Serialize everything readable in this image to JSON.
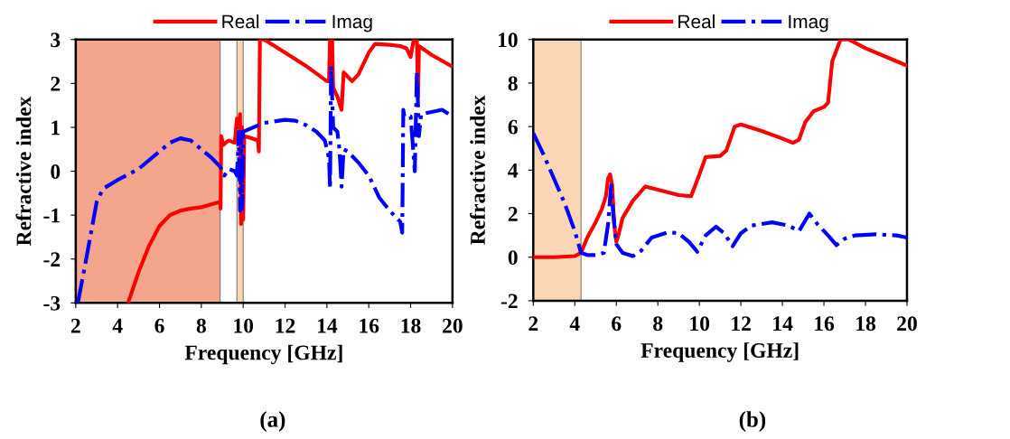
{
  "chart_data": [
    {
      "type": "line",
      "xlabel": "Frequency [GHz]",
      "ylabel": "Refractive index",
      "xlim": [
        2,
        20
      ],
      "ylim": [
        -3,
        3
      ],
      "xticks": [
        2,
        4,
        6,
        8,
        10,
        12,
        14,
        16,
        18,
        20
      ],
      "yticks": [
        -3,
        -2,
        -1,
        0,
        1,
        2,
        3
      ],
      "grid": false,
      "legend": "top",
      "annotations": [
        "(a)"
      ],
      "bands": [
        {
          "axis": "x",
          "from": 2,
          "to": 8.9,
          "color": "#f4a68c"
        },
        {
          "axis": "x",
          "from": 9.7,
          "to": 10.0,
          "color": "#fbd6b4"
        }
      ],
      "series": [
        {
          "name": "Real",
          "color": "#ff0000",
          "line_style": "solid",
          "x": [
            4.5,
            5,
            5.5,
            6,
            6.5,
            7,
            7.5,
            8,
            8.5,
            8.9,
            8.92,
            8.95,
            9.05,
            9.3,
            9.6,
            9.7,
            9.8,
            9.85,
            9.9,
            9.95,
            10.0,
            10.05,
            10.4,
            10.7,
            10.75,
            10.8,
            11,
            12,
            13,
            14,
            14.1,
            14.15,
            14.25,
            14.3,
            14.5,
            14.7,
            14.8,
            15,
            15.2,
            15.5,
            16,
            16.3,
            17,
            17.5,
            17.8,
            18,
            18.15,
            18.3,
            18.35,
            18.4,
            19,
            20
          ],
          "values": [
            -3,
            -2.3,
            -1.7,
            -1.25,
            -1.0,
            -0.9,
            -0.85,
            -0.82,
            -0.75,
            -0.7,
            -0.85,
            0.8,
            0.6,
            0.7,
            0.65,
            1.2,
            1.0,
            1.3,
            -1.2,
            1.0,
            -1.1,
            0.8,
            0.75,
            0.7,
            0.45,
            3.0,
            3.0,
            2.7,
            2.4,
            2.05,
            2.05,
            3.0,
            3.0,
            1.9,
            1.7,
            1.4,
            2.25,
            2.15,
            2.05,
            2.2,
            2.7,
            2.9,
            2.88,
            2.85,
            2.8,
            2.6,
            3.0,
            3.0,
            1.7,
            2.85,
            2.65,
            2.38
          ]
        },
        {
          "name": "Imag",
          "color": "#0000ff",
          "line_style": "dashdot",
          "x": [
            2.1,
            2.5,
            3,
            3.3,
            4,
            5,
            6,
            6.5,
            7,
            7.5,
            8,
            8.5,
            8.9,
            9.1,
            9.3,
            9.6,
            9.7,
            9.8,
            9.85,
            9.9,
            9.95,
            10,
            10.5,
            11,
            12,
            12.5,
            13,
            13.5,
            13.9,
            14.1,
            14.15,
            14.2,
            14.3,
            14.5,
            14.6,
            14.7,
            14.8,
            15,
            15.5,
            16,
            16.5,
            17,
            17.5,
            17.6,
            17.65,
            17.7,
            18,
            18.2,
            18.3,
            18.4,
            18.5,
            19,
            19.5,
            20
          ],
          "values": [
            -3,
            -2,
            -0.7,
            -0.4,
            -0.2,
            0.05,
            0.45,
            0.65,
            0.75,
            0.7,
            0.5,
            0.3,
            0.1,
            -0.1,
            0.05,
            0.0,
            -0.1,
            0.9,
            -0.9,
            0.9,
            -0.85,
            0.9,
            1.0,
            1.1,
            1.17,
            1.15,
            1.05,
            0.9,
            0.7,
            0.3,
            -0.4,
            2.4,
            1.0,
            0.9,
            0.5,
            -0.35,
            0.5,
            0.45,
            0.2,
            -0.1,
            -0.6,
            -0.9,
            -1.15,
            -1.4,
            1.4,
            1.25,
            1.25,
            0.0,
            2.3,
            0.8,
            1.3,
            1.35,
            1.4,
            1.25
          ]
        }
      ]
    },
    {
      "type": "line",
      "xlabel": "Frequency [GHz]",
      "ylabel": "Refractive index",
      "xlim": [
        2,
        20
      ],
      "ylim": [
        -2,
        10
      ],
      "xticks": [
        2,
        4,
        6,
        8,
        10,
        12,
        14,
        16,
        18,
        20
      ],
      "yticks": [
        -2,
        0,
        2,
        4,
        6,
        8,
        10
      ],
      "grid": false,
      "legend": "top",
      "annotations": [
        "(b)"
      ],
      "bands": [
        {
          "axis": "x",
          "from": 2,
          "to": 4.3,
          "color": "#fbd6b4"
        }
      ],
      "series": [
        {
          "name": "Real",
          "color": "#ff0000",
          "line_style": "solid",
          "x": [
            2,
            3,
            4,
            4.3,
            4.6,
            5,
            5.3,
            5.5,
            5.6,
            5.7,
            5.8,
            5.9,
            6.0,
            6.1,
            6.3,
            6.8,
            7.4,
            8,
            9,
            9.6,
            10,
            10.3,
            11,
            11.3,
            11.7,
            12,
            13,
            14,
            14.5,
            14.8,
            15.1,
            15.5,
            16,
            16.2,
            16.4,
            16.8,
            17.2,
            18,
            19,
            20
          ],
          "values": [
            0,
            0,
            0.05,
            0.2,
            0.9,
            1.6,
            2.2,
            2.8,
            3.6,
            3.8,
            3.3,
            1.5,
            0.7,
            1.0,
            1.8,
            2.6,
            3.25,
            3.1,
            2.85,
            2.8,
            3.8,
            4.6,
            4.65,
            4.9,
            6.0,
            6.1,
            5.8,
            5.45,
            5.25,
            5.4,
            6.2,
            6.7,
            6.9,
            7.1,
            9,
            10,
            10,
            9.6,
            9.2,
            8.8
          ]
        },
        {
          "name": "Imag",
          "color": "#0000ff",
          "line_style": "dashdot",
          "x": [
            2,
            2.5,
            3,
            3.5,
            4,
            4.3,
            4.6,
            5,
            5.4,
            5.6,
            5.75,
            5.85,
            6.0,
            6.3,
            6.8,
            7.2,
            7.7,
            8.5,
            9,
            9.5,
            9.9,
            10.3,
            10.8,
            11.2,
            11.6,
            12,
            12.5,
            13.5,
            14.3,
            14.8,
            15.3,
            15.7,
            16.2,
            16.6,
            17,
            17.5,
            18.5,
            19.5,
            20
          ],
          "values": [
            5.7,
            4.7,
            3.6,
            2.5,
            1.2,
            0.2,
            0.1,
            0.1,
            0.2,
            1.5,
            3.3,
            2.0,
            0.6,
            0.2,
            0.05,
            0.3,
            0.9,
            1.15,
            1.1,
            0.7,
            0.25,
            1.0,
            1.4,
            1.1,
            0.5,
            1.1,
            1.45,
            1.6,
            1.45,
            1.2,
            2.0,
            1.5,
            1.0,
            0.55,
            0.85,
            1.0,
            1.05,
            1.0,
            0.9
          ]
        }
      ]
    }
  ]
}
